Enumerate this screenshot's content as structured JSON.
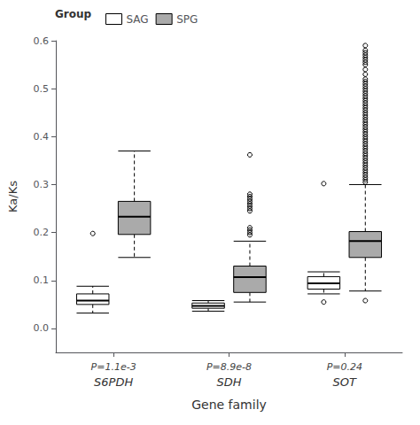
{
  "chart_data": {
    "type": "box",
    "title": "",
    "xlabel": "Gene family",
    "ylabel": "Ka/Ks",
    "categories": [
      "S6PDH",
      "SDH",
      "SOT"
    ],
    "annotations": [
      "P=1.1e-3",
      "P=8.9e-8",
      "P=0.24"
    ],
    "ylim": [
      -0.05,
      0.6
    ],
    "yticks": [
      {
        "value": 0.0,
        "label": "0.0"
      },
      0.1,
      0.2,
      0.3,
      0.4,
      0.5,
      0.6
    ],
    "grid": false,
    "legend": "upper left",
    "legend_title": "Group",
    "edge_color": "black",
    "median_color": "black",
    "series": [
      {
        "name": "SAG",
        "color": "white",
        "values": [
          {
            "q1": 0.05,
            "median": 0.058,
            "q3": 0.072,
            "whisker_low": 0.032,
            "whisker_high": 0.088,
            "outliers": [
              0.198
            ]
          },
          {
            "q1": 0.042,
            "median": 0.047,
            "q3": 0.053,
            "whisker_low": 0.036,
            "whisker_high": 0.058,
            "outliers": []
          },
          {
            "q1": 0.082,
            "median": 0.094,
            "q3": 0.108,
            "whisker_low": 0.072,
            "whisker_high": 0.118,
            "outliers": [
              0.055,
              0.302
            ]
          }
        ]
      },
      {
        "name": "SPG",
        "color": "#aaaaaa",
        "values": [
          {
            "q1": 0.196,
            "median": 0.233,
            "q3": 0.265,
            "whisker_low": 0.148,
            "whisker_high": 0.37,
            "outliers": []
          },
          {
            "q1": 0.075,
            "median": 0.107,
            "q3": 0.13,
            "whisker_low": 0.055,
            "whisker_high": 0.182,
            "outliers": [
              0.195,
              0.2,
              0.205,
              0.21,
              0.245,
              0.25,
              0.255,
              0.26,
              0.265,
              0.27,
              0.275,
              0.28,
              0.362
            ]
          },
          {
            "q1": 0.148,
            "median": 0.182,
            "q3": 0.202,
            "whisker_low": 0.078,
            "whisker_high": 0.3,
            "outliers": [
              0.058,
              0.305,
              0.31,
              0.315,
              0.32,
              0.325,
              0.33,
              0.335,
              0.34,
              0.345,
              0.35,
              0.355,
              0.36,
              0.365,
              0.37,
              0.375,
              0.38,
              0.385,
              0.39,
              0.395,
              0.4,
              0.405,
              0.41,
              0.415,
              0.42,
              0.425,
              0.43,
              0.435,
              0.44,
              0.445,
              0.45,
              0.455,
              0.46,
              0.465,
              0.47,
              0.475,
              0.48,
              0.485,
              0.49,
              0.495,
              0.5,
              0.505,
              0.51,
              0.515,
              0.52,
              0.53,
              0.54,
              0.55,
              0.555,
              0.56,
              0.565,
              0.57,
              0.575,
              0.58,
              0.59
            ]
          }
        ]
      }
    ]
  }
}
